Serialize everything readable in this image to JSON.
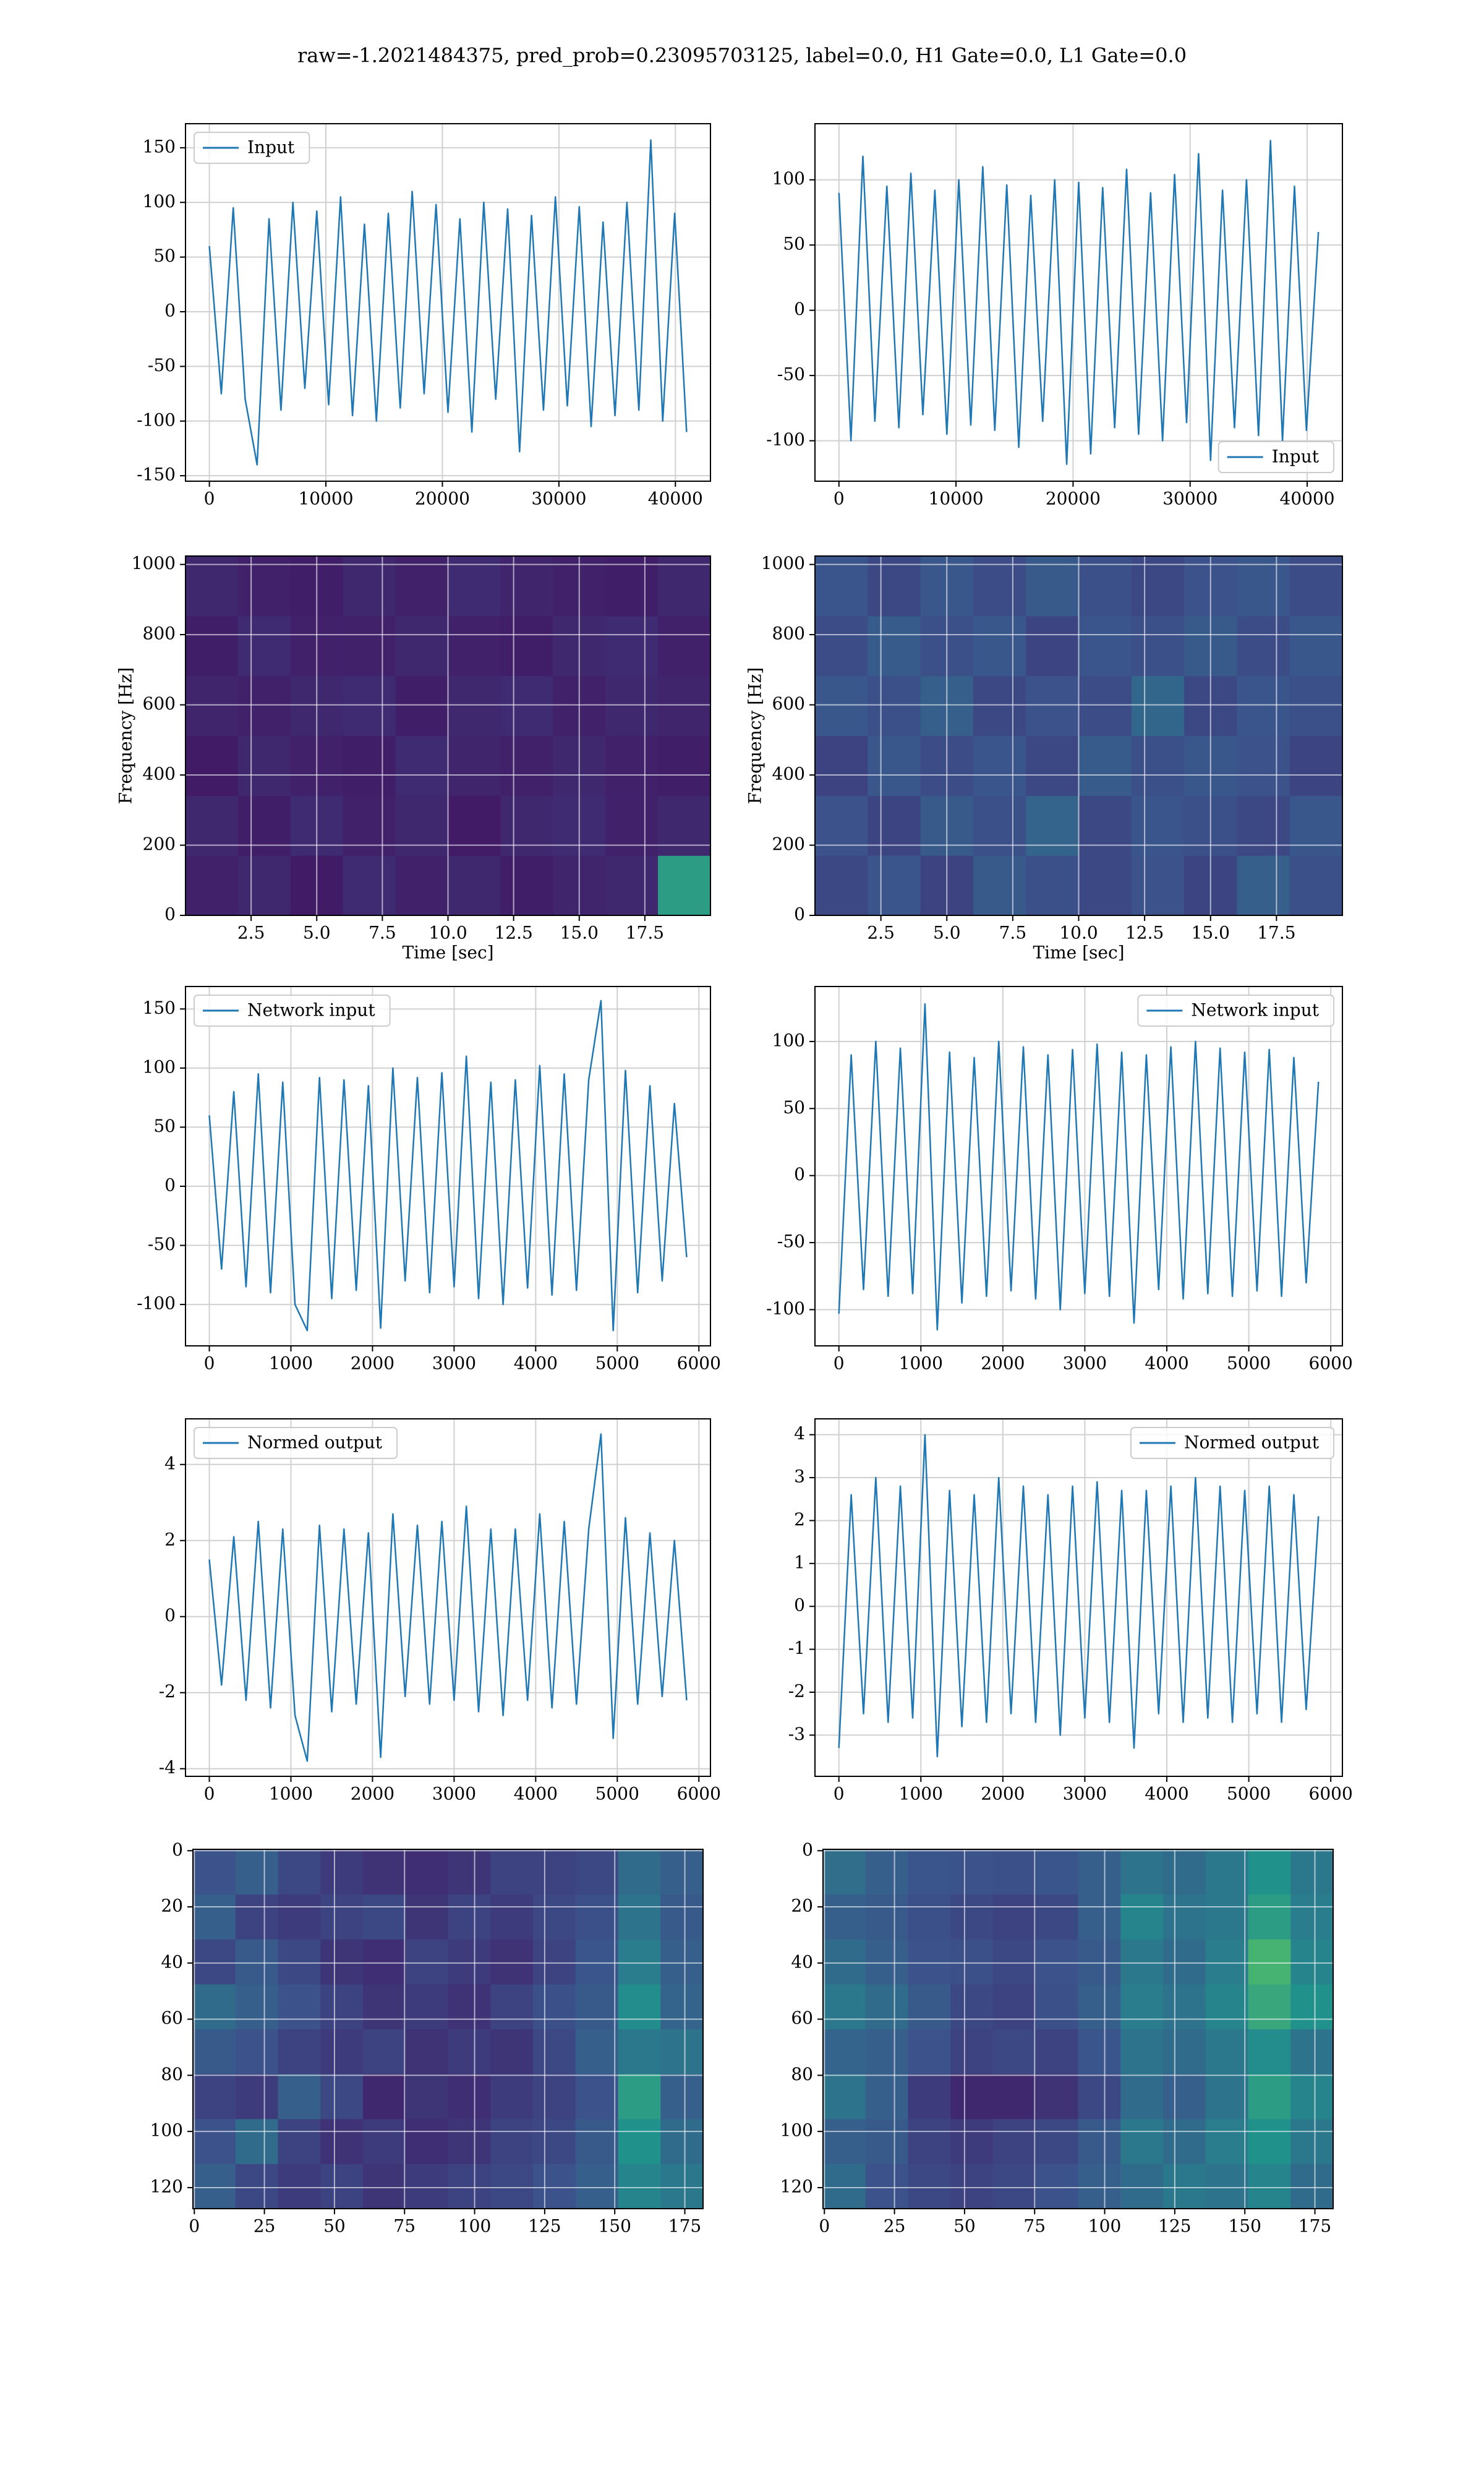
{
  "title": "raw=-1.2021484375, pred_prob=0.23095703125, label=0.0, H1 Gate=0.0, L1 Gate=0.0",
  "chart_data": [
    {
      "type": "line",
      "xlim": [
        -2048,
        43008
      ],
      "ylim": [
        -155,
        172
      ],
      "xticks": [
        0,
        10000,
        20000,
        30000,
        40000
      ],
      "yticks": [
        -150,
        -100,
        -50,
        0,
        50,
        100,
        150
      ],
      "grid": true,
      "legend": "upper left",
      "x": [
        0,
        1024,
        2048,
        3072,
        4096,
        5120,
        6144,
        7168,
        8192,
        9216,
        10240,
        11264,
        12288,
        13312,
        14336,
        15360,
        16384,
        17408,
        18432,
        19456,
        20480,
        21504,
        22528,
        23552,
        24576,
        25600,
        26624,
        27648,
        28672,
        29696,
        30720,
        31744,
        32768,
        33792,
        34816,
        35840,
        36864,
        37888,
        38912,
        39936,
        40960
      ],
      "series": [
        {
          "name": "Input",
          "color": "#1f77b4",
          "values": [
            60,
            -75,
            95,
            -80,
            -140,
            85,
            -90,
            100,
            -70,
            92,
            -85,
            105,
            -95,
            80,
            -100,
            90,
            -88,
            110,
            -75,
            98,
            -92,
            85,
            -110,
            100,
            -80,
            94,
            -128,
            88,
            -90,
            105,
            -86,
            96,
            -105,
            82,
            -95,
            100,
            -90,
            157,
            -100,
            90,
            -110
          ]
        }
      ]
    },
    {
      "type": "line",
      "xlim": [
        -2048,
        43008
      ],
      "ylim": [
        -131,
        143
      ],
      "xticks": [
        0,
        10000,
        20000,
        30000,
        40000
      ],
      "yticks": [
        -100,
        -50,
        0,
        50,
        100
      ],
      "grid": true,
      "legend": "lower right",
      "x": [
        0,
        1024,
        2048,
        3072,
        4096,
        5120,
        6144,
        7168,
        8192,
        9216,
        10240,
        11264,
        12288,
        13312,
        14336,
        15360,
        16384,
        17408,
        18432,
        19456,
        20480,
        21504,
        22528,
        23552,
        24576,
        25600,
        26624,
        27648,
        28672,
        29696,
        30720,
        31744,
        32768,
        33792,
        34816,
        35840,
        36864,
        37888,
        38912,
        39936,
        40960
      ],
      "series": [
        {
          "name": "Input",
          "color": "#1f77b4",
          "values": [
            90,
            -100,
            118,
            -85,
            95,
            -90,
            105,
            -80,
            92,
            -95,
            100,
            -88,
            110,
            -92,
            96,
            -105,
            88,
            -85,
            100,
            -118,
            98,
            -110,
            94,
            -90,
            108,
            -95,
            90,
            -100,
            104,
            -86,
            120,
            -115,
            92,
            -90,
            100,
            -96,
            130,
            -100,
            95,
            -92,
            60
          ]
        }
      ]
    },
    {
      "type": "heatmap",
      "xlim": [
        0,
        20
      ],
      "ylim": [
        0,
        1024
      ],
      "xticks": [
        2.5,
        {
          "value": 5,
          "label": "5.0"
        },
        7.5,
        {
          "value": 10,
          "label": "10.0"
        },
        12.5,
        {
          "value": 15,
          "label": "15.0"
        },
        17.5
      ],
      "yticks": [
        0,
        200,
        400,
        600,
        800,
        1000
      ],
      "grid": true,
      "colormap": "viridis",
      "xlabel": "Time [sec]",
      "ylabel": "Frequency [Hz]",
      "z": [
        [
          0.1,
          0.12,
          0.08,
          0.13,
          0.1,
          0.12,
          0.09,
          0.11,
          0.12,
          0.55
        ],
        [
          0.12,
          0.09,
          0.13,
          0.1,
          0.12,
          0.08,
          0.12,
          0.13,
          0.1,
          0.12
        ],
        [
          0.08,
          0.12,
          0.1,
          0.09,
          0.13,
          0.11,
          0.1,
          0.12,
          0.1,
          0.09
        ],
        [
          0.11,
          0.1,
          0.12,
          0.13,
          0.09,
          0.12,
          0.13,
          0.1,
          0.12,
          0.11
        ],
        [
          0.09,
          0.13,
          0.1,
          0.1,
          0.12,
          0.1,
          0.09,
          0.12,
          0.13,
          0.1
        ],
        [
          0.12,
          0.1,
          0.09,
          0.12,
          0.1,
          0.13,
          0.11,
          0.1,
          0.09,
          0.12
        ]
      ]
    },
    {
      "type": "heatmap",
      "xlim": [
        0,
        20
      ],
      "ylim": [
        0,
        1024
      ],
      "xticks": [
        2.5,
        {
          "value": 5,
          "label": "5.0"
        },
        7.5,
        {
          "value": 10,
          "label": "10.0"
        },
        12.5,
        {
          "value": 15,
          "label": "15.0"
        },
        17.5
      ],
      "yticks": [
        0,
        200,
        400,
        600,
        800,
        1000
      ],
      "grid": true,
      "colormap": "viridis",
      "xlabel": "Time [sec]",
      "ylabel": "Frequency [Hz]",
      "z": [
        [
          0.22,
          0.26,
          0.2,
          0.28,
          0.24,
          0.22,
          0.25,
          0.21,
          0.3,
          0.24
        ],
        [
          0.25,
          0.21,
          0.28,
          0.24,
          0.32,
          0.22,
          0.26,
          0.24,
          0.22,
          0.27
        ],
        [
          0.2,
          0.27,
          0.23,
          0.26,
          0.22,
          0.29,
          0.24,
          0.27,
          0.25,
          0.21
        ],
        [
          0.27,
          0.24,
          0.3,
          0.22,
          0.25,
          0.23,
          0.33,
          0.22,
          0.26,
          0.24
        ],
        [
          0.23,
          0.29,
          0.24,
          0.27,
          0.21,
          0.26,
          0.24,
          0.28,
          0.23,
          0.27
        ],
        [
          0.26,
          0.22,
          0.27,
          0.23,
          0.28,
          0.24,
          0.22,
          0.25,
          0.27,
          0.23
        ]
      ]
    },
    {
      "type": "line",
      "xlim": [
        -292,
        6142
      ],
      "ylim": [
        -135,
        169
      ],
      "xticks": [
        0,
        1000,
        2000,
        3000,
        4000,
        5000,
        6000
      ],
      "yticks": [
        -100,
        -50,
        0,
        50,
        100,
        150
      ],
      "grid": true,
      "legend": "upper left",
      "x": [
        0,
        150,
        300,
        450,
        600,
        750,
        900,
        1050,
        1200,
        1350,
        1500,
        1650,
        1800,
        1950,
        2100,
        2250,
        2400,
        2550,
        2700,
        2850,
        3000,
        3150,
        3300,
        3450,
        3600,
        3750,
        3900,
        4050,
        4200,
        4350,
        4500,
        4650,
        4800,
        4950,
        5100,
        5250,
        5400,
        5550,
        5700,
        5850
      ],
      "series": [
        {
          "name": "Network input",
          "color": "#1f77b4",
          "values": [
            60,
            -70,
            80,
            -85,
            95,
            -90,
            88,
            -100,
            -122,
            92,
            -95,
            90,
            -88,
            85,
            -120,
            100,
            -80,
            92,
            -90,
            96,
            -85,
            110,
            -95,
            88,
            -100,
            90,
            -86,
            102,
            -92,
            95,
            -88,
            90,
            157,
            -122,
            98,
            -90,
            85,
            -80,
            70,
            -60
          ]
        }
      ]
    },
    {
      "type": "line",
      "xlim": [
        -292,
        6142
      ],
      "ylim": [
        -127,
        141
      ],
      "xticks": [
        0,
        1000,
        2000,
        3000,
        4000,
        5000,
        6000
      ],
      "yticks": [
        -100,
        -50,
        0,
        50,
        100
      ],
      "grid": true,
      "legend": "upper right",
      "x": [
        0,
        150,
        300,
        450,
        600,
        750,
        900,
        1050,
        1200,
        1350,
        1500,
        1650,
        1800,
        1950,
        2100,
        2250,
        2400,
        2550,
        2700,
        2850,
        3000,
        3150,
        3300,
        3450,
        3600,
        3750,
        3900,
        4050,
        4200,
        4350,
        4500,
        4650,
        4800,
        4950,
        5100,
        5250,
        5400,
        5550,
        5700,
        5850
      ],
      "series": [
        {
          "name": "Network input",
          "color": "#1f77b4",
          "values": [
            -103,
            90,
            -85,
            100,
            -90,
            95,
            -88,
            128,
            -115,
            92,
            -95,
            88,
            -90,
            100,
            -86,
            96,
            -92,
            90,
            -100,
            94,
            -88,
            98,
            -90,
            92,
            -110,
            90,
            -85,
            96,
            -92,
            100,
            -88,
            95,
            -90,
            92,
            -86,
            94,
            -90,
            88,
            -80,
            70
          ]
        }
      ]
    },
    {
      "type": "line",
      "xlim": [
        -292,
        6142
      ],
      "ylim": [
        -4.2,
        5.2
      ],
      "xticks": [
        0,
        1000,
        2000,
        3000,
        4000,
        5000,
        6000
      ],
      "yticks": [
        -4,
        -2,
        0,
        2,
        4
      ],
      "grid": true,
      "legend": "upper left",
      "x": [
        0,
        150,
        300,
        450,
        600,
        750,
        900,
        1050,
        1200,
        1350,
        1500,
        1650,
        1800,
        1950,
        2100,
        2250,
        2400,
        2550,
        2700,
        2850,
        3000,
        3150,
        3300,
        3450,
        3600,
        3750,
        3900,
        4050,
        4200,
        4350,
        4500,
        4650,
        4800,
        4950,
        5100,
        5250,
        5400,
        5550,
        5700,
        5850
      ],
      "series": [
        {
          "name": "Normed output",
          "color": "#1f77b4",
          "values": [
            1.5,
            -1.8,
            2.1,
            -2.2,
            2.5,
            -2.4,
            2.3,
            -2.6,
            -3.8,
            2.4,
            -2.5,
            2.3,
            -2.3,
            2.2,
            -3.7,
            2.7,
            -2.1,
            2.4,
            -2.3,
            2.5,
            -2.2,
            2.9,
            -2.5,
            2.3,
            -2.6,
            2.3,
            -2.2,
            2.7,
            -2.4,
            2.5,
            -2.3,
            2.3,
            4.8,
            -3.2,
            2.6,
            -2.3,
            2.2,
            -2.1,
            2.0,
            -2.2
          ]
        }
      ]
    },
    {
      "type": "line",
      "xlim": [
        -292,
        6142
      ],
      "ylim": [
        -3.96,
        4.37
      ],
      "xticks": [
        0,
        1000,
        2000,
        3000,
        4000,
        5000,
        6000
      ],
      "yticks": [
        -3,
        -2,
        -1,
        0,
        1,
        2,
        3,
        4
      ],
      "grid": true,
      "legend": "upper right",
      "x": [
        0,
        150,
        300,
        450,
        600,
        750,
        900,
        1050,
        1200,
        1350,
        1500,
        1650,
        1800,
        1950,
        2100,
        2250,
        2400,
        2550,
        2700,
        2850,
        3000,
        3150,
        3300,
        3450,
        3600,
        3750,
        3900,
        4050,
        4200,
        4350,
        4500,
        4650,
        4800,
        4950,
        5100,
        5250,
        5400,
        5550,
        5700,
        5850
      ],
      "series": [
        {
          "name": "Normed output",
          "color": "#1f77b4",
          "values": [
            -3.3,
            2.6,
            -2.5,
            3.0,
            -2.7,
            2.8,
            -2.6,
            4.0,
            -3.5,
            2.7,
            -2.8,
            2.6,
            -2.7,
            3.0,
            -2.5,
            2.8,
            -2.7,
            2.6,
            -3.0,
            2.8,
            -2.6,
            2.9,
            -2.7,
            2.7,
            -3.3,
            2.7,
            -2.5,
            2.8,
            -2.7,
            3.0,
            -2.6,
            2.8,
            -2.7,
            2.7,
            -2.5,
            2.8,
            -2.7,
            2.6,
            -2.4,
            2.1
          ]
        }
      ]
    },
    {
      "type": "heatmap",
      "xlim": [
        -0.5,
        181.5
      ],
      "ylim": [
        127.5,
        -0.5
      ],
      "xticks": [
        0,
        25,
        50,
        75,
        100,
        125,
        150,
        175
      ],
      "yticks": [
        0,
        20,
        40,
        60,
        80,
        100,
        120
      ],
      "grid": true,
      "colormap": "viridis",
      "z": [
        [
          0.3,
          0.22,
          0.18,
          0.2,
          0.16,
          0.18,
          0.2,
          0.22,
          0.25,
          0.3,
          0.45,
          0.4
        ],
        [
          0.25,
          0.35,
          0.2,
          0.15,
          0.18,
          0.14,
          0.16,
          0.2,
          0.22,
          0.28,
          0.5,
          0.35
        ],
        [
          0.2,
          0.18,
          0.3,
          0.22,
          0.12,
          0.16,
          0.14,
          0.18,
          0.2,
          0.25,
          0.55,
          0.3
        ],
        [
          0.28,
          0.25,
          0.2,
          0.18,
          0.2,
          0.15,
          0.18,
          0.16,
          0.22,
          0.3,
          0.4,
          0.38
        ],
        [
          0.35,
          0.3,
          0.25,
          0.2,
          0.16,
          0.18,
          0.15,
          0.2,
          0.24,
          0.28,
          0.48,
          0.32
        ],
        [
          0.22,
          0.28,
          0.22,
          0.16,
          0.14,
          0.2,
          0.18,
          0.15,
          0.2,
          0.26,
          0.42,
          0.3
        ],
        [
          0.3,
          0.2,
          0.18,
          0.2,
          0.22,
          0.16,
          0.2,
          0.18,
          0.22,
          0.24,
          0.38,
          0.28
        ],
        [
          0.25,
          0.3,
          0.22,
          0.18,
          0.15,
          0.14,
          0.16,
          0.2,
          0.2,
          0.22,
          0.35,
          0.3
        ]
      ]
    },
    {
      "type": "heatmap",
      "xlim": [
        -0.5,
        181.5
      ],
      "ylim": [
        127.5,
        -0.5
      ],
      "xticks": [
        0,
        25,
        50,
        75,
        100,
        125,
        150,
        175
      ],
      "yticks": [
        0,
        20,
        40,
        60,
        80,
        100,
        120
      ],
      "grid": true,
      "colormap": "viridis",
      "z": [
        [
          0.35,
          0.25,
          0.22,
          0.2,
          0.22,
          0.25,
          0.3,
          0.35,
          0.4,
          0.38,
          0.45,
          0.35
        ],
        [
          0.3,
          0.28,
          0.2,
          0.18,
          0.2,
          0.22,
          0.28,
          0.4,
          0.35,
          0.42,
          0.5,
          0.4
        ],
        [
          0.38,
          0.3,
          0.18,
          0.12,
          0.12,
          0.15,
          0.22,
          0.35,
          0.3,
          0.38,
          0.55,
          0.45
        ],
        [
          0.32,
          0.3,
          0.25,
          0.2,
          0.22,
          0.2,
          0.26,
          0.38,
          0.35,
          0.4,
          0.48,
          0.38
        ],
        [
          0.4,
          0.35,
          0.28,
          0.22,
          0.2,
          0.24,
          0.3,
          0.42,
          0.38,
          0.45,
          0.6,
          0.5
        ],
        [
          0.35,
          0.3,
          0.25,
          0.24,
          0.22,
          0.25,
          0.28,
          0.4,
          0.35,
          0.42,
          0.65,
          0.45
        ],
        [
          0.3,
          0.28,
          0.24,
          0.22,
          0.2,
          0.22,
          0.3,
          0.45,
          0.38,
          0.4,
          0.55,
          0.42
        ],
        [
          0.36,
          0.3,
          0.26,
          0.25,
          0.24,
          0.26,
          0.3,
          0.38,
          0.35,
          0.4,
          0.5,
          0.4
        ]
      ]
    }
  ]
}
